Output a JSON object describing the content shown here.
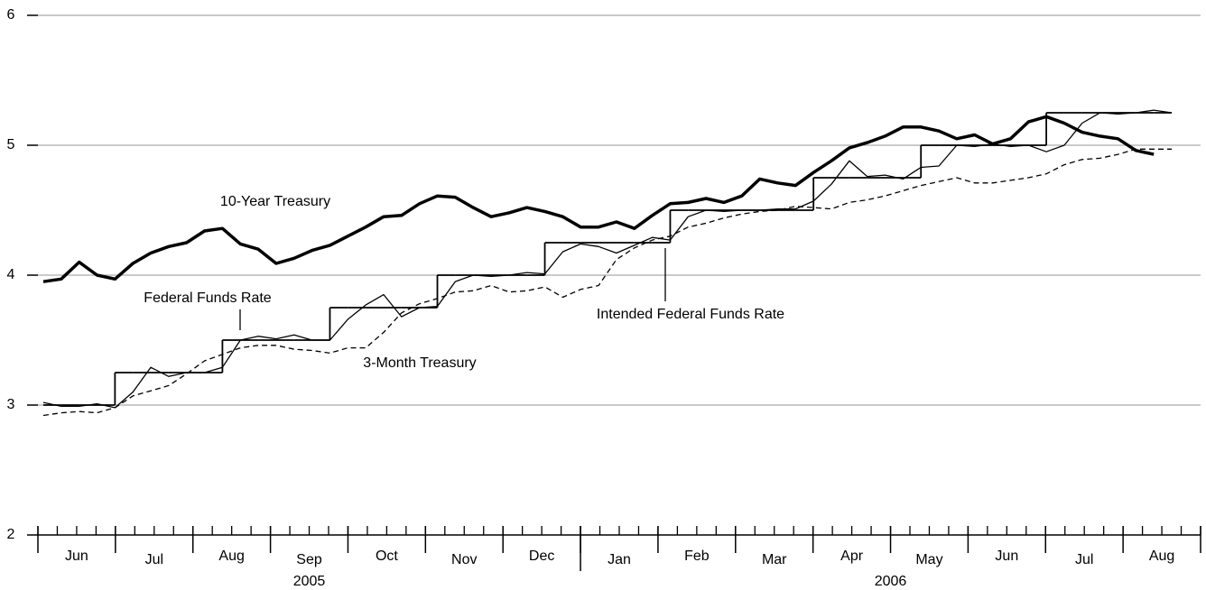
{
  "chart_data": {
    "type": "line",
    "ylim": [
      2,
      6
    ],
    "yticks": [
      2,
      3,
      4,
      5,
      6
    ],
    "grid": true,
    "months": [
      "Jun",
      "Jul",
      "Aug",
      "Sep",
      "Oct",
      "Nov",
      "Dec",
      "Jan",
      "Feb",
      "Mar",
      "Apr",
      "May",
      "Jun",
      "Jul",
      "Aug"
    ],
    "years": [
      {
        "label": "2005",
        "months": 7
      },
      {
        "label": "2006",
        "months": 8
      }
    ],
    "series": [
      {
        "name": "10-Year Treasury",
        "color": "#000000",
        "width": 3.5,
        "dash": false,
        "step": false,
        "values": [
          3.95,
          3.97,
          4.1,
          4.0,
          3.97,
          4.09,
          4.17,
          4.22,
          4.25,
          4.34,
          4.36,
          4.24,
          4.2,
          4.09,
          4.13,
          4.19,
          4.23,
          4.3,
          4.37,
          4.45,
          4.46,
          4.55,
          4.61,
          4.6,
          4.52,
          4.45,
          4.48,
          4.52,
          4.49,
          4.45,
          4.37,
          4.37,
          4.41,
          4.36,
          4.46,
          4.55,
          4.56,
          4.59,
          4.56,
          4.61,
          4.74,
          4.71,
          4.69,
          4.79,
          4.88,
          4.98,
          5.02,
          5.07,
          5.14,
          5.14,
          5.11,
          5.05,
          5.08,
          5.01,
          5.05,
          5.18,
          5.22,
          5.17,
          5.1,
          5.07,
          5.05,
          4.96,
          4.93,
          null
        ]
      },
      {
        "name": "Federal Funds Rate",
        "color": "#000000",
        "width": 1.3,
        "dash": false,
        "step": false,
        "values": [
          3.02,
          2.99,
          2.99,
          3.01,
          2.98,
          3.1,
          3.29,
          3.22,
          3.25,
          3.25,
          3.29,
          3.5,
          3.53,
          3.51,
          3.54,
          3.5,
          3.5,
          3.66,
          3.77,
          3.85,
          3.68,
          3.75,
          3.76,
          3.95,
          4.0,
          3.99,
          4.0,
          4.02,
          4.01,
          4.18,
          4.24,
          4.22,
          4.17,
          4.23,
          4.29,
          4.27,
          4.45,
          4.5,
          4.49,
          4.5,
          4.5,
          4.51,
          4.51,
          4.57,
          4.7,
          4.88,
          4.76,
          4.77,
          4.74,
          4.83,
          4.84,
          5.0,
          4.99,
          5.01,
          4.99,
          5.0,
          4.95,
          5.0,
          5.17,
          5.25,
          5.24,
          5.25,
          5.27,
          5.25
        ]
      },
      {
        "name": "3-Month Treasury",
        "color": "#000000",
        "width": 1.3,
        "dash": true,
        "step": false,
        "values": [
          2.92,
          2.94,
          2.95,
          2.94,
          2.98,
          3.07,
          3.11,
          3.15,
          3.24,
          3.34,
          3.39,
          3.44,
          3.46,
          3.46,
          3.43,
          3.42,
          3.4,
          3.44,
          3.44,
          3.56,
          3.71,
          3.78,
          3.82,
          3.87,
          3.88,
          3.92,
          3.87,
          3.88,
          3.91,
          3.83,
          3.89,
          3.92,
          4.12,
          4.21,
          4.27,
          4.3,
          4.37,
          4.4,
          4.44,
          4.47,
          4.49,
          4.5,
          4.53,
          4.52,
          4.51,
          4.56,
          4.58,
          4.61,
          4.65,
          4.69,
          4.72,
          4.75,
          4.71,
          4.71,
          4.73,
          4.75,
          4.78,
          4.85,
          4.89,
          4.9,
          4.93,
          4.97,
          4.97,
          4.97
        ]
      },
      {
        "name": "Intended Federal Funds Rate",
        "color": "#000000",
        "width": 1.8,
        "dash": false,
        "step": true,
        "values": [
          3.0,
          3.0,
          3.0,
          3.0,
          3.25,
          3.25,
          3.25,
          3.25,
          3.25,
          3.25,
          3.5,
          3.5,
          3.5,
          3.5,
          3.5,
          3.5,
          3.75,
          3.75,
          3.75,
          3.75,
          3.75,
          3.75,
          4.0,
          4.0,
          4.0,
          4.0,
          4.0,
          4.0,
          4.25,
          4.25,
          4.25,
          4.25,
          4.25,
          4.25,
          4.25,
          4.5,
          4.5,
          4.5,
          4.5,
          4.5,
          4.5,
          4.5,
          4.5,
          4.75,
          4.75,
          4.75,
          4.75,
          4.75,
          4.75,
          5.0,
          5.0,
          5.0,
          5.0,
          5.0,
          5.0,
          5.0,
          5.25,
          5.25,
          5.25,
          5.25,
          5.25,
          5.25,
          5.25,
          5.25
        ]
      }
    ]
  }
}
